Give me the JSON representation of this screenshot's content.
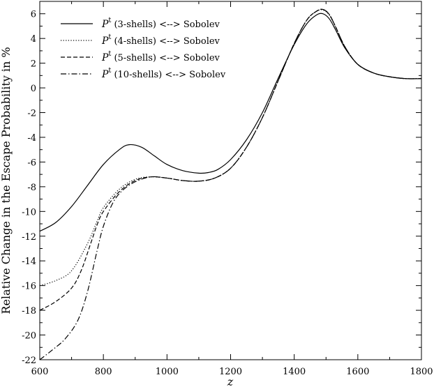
{
  "chart_data": {
    "type": "line",
    "title": "",
    "xlabel": "z",
    "ylabel": "Relative Change in the Escape Probability in %",
    "xlim": [
      600,
      1800
    ],
    "ylim": [
      -22,
      7
    ],
    "xticks": [
      600,
      800,
      1000,
      1200,
      1400,
      1600,
      1800
    ],
    "yticks": [
      -22,
      -20,
      -18,
      -16,
      -14,
      -12,
      -10,
      -8,
      -6,
      -4,
      -2,
      0,
      2,
      4,
      6
    ],
    "grid": false,
    "legend_position": "top-left",
    "series": [
      {
        "name": "Pt (3-shells) <--> Sobolev",
        "label_symbol": "P",
        "label_superscript": "t",
        "label_text": "(3-shells) <--> Sobolev",
        "dash": "solid",
        "x": [
          600,
          650,
          700,
          750,
          800,
          850,
          880,
          920,
          960,
          1000,
          1050,
          1100,
          1130,
          1160,
          1200,
          1250,
          1300,
          1350,
          1400,
          1440,
          1470,
          1490,
          1510,
          1530,
          1560,
          1600,
          1650,
          1700,
          1750,
          1800
        ],
        "y": [
          -11.6,
          -10.9,
          -9.6,
          -7.9,
          -6.2,
          -5.0,
          -4.6,
          -4.8,
          -5.5,
          -6.2,
          -6.7,
          -6.9,
          -6.85,
          -6.6,
          -5.8,
          -4.2,
          -2.0,
          0.8,
          3.5,
          5.2,
          5.9,
          6.0,
          5.6,
          4.7,
          3.2,
          1.9,
          1.2,
          0.9,
          0.75,
          0.75
        ]
      },
      {
        "name": "Pt (4-shells) <--> Sobolev",
        "label_symbol": "P",
        "label_superscript": "t",
        "label_text": "(4-shells) <--> Sobolev",
        "dash": "dotted",
        "x": [
          600,
          650,
          700,
          750,
          780,
          800,
          850,
          900,
          950,
          1000,
          1050,
          1100,
          1150,
          1200,
          1250,
          1300,
          1350,
          1400,
          1440,
          1470,
          1490,
          1510,
          1530,
          1560,
          1600,
          1650,
          1700,
          1750,
          1800
        ],
        "y": [
          -16.0,
          -15.6,
          -14.8,
          -12.6,
          -10.8,
          -9.7,
          -8.2,
          -7.4,
          -7.2,
          -7.3,
          -7.5,
          -7.55,
          -7.3,
          -6.5,
          -4.8,
          -2.4,
          0.6,
          3.6,
          5.5,
          6.2,
          6.3,
          5.9,
          4.9,
          3.3,
          1.9,
          1.2,
          0.9,
          0.75,
          0.75
        ]
      },
      {
        "name": "Pt (5-shells) <--> Sobolev",
        "label_symbol": "P",
        "label_superscript": "t",
        "label_text": "(5-shells) <--> Sobolev",
        "dash": "dashed",
        "x": [
          600,
          650,
          700,
          730,
          760,
          780,
          800,
          850,
          900,
          950,
          1000,
          1050,
          1100,
          1150,
          1200,
          1250,
          1300,
          1350,
          1400,
          1440,
          1470,
          1490,
          1510,
          1530,
          1560,
          1600,
          1650,
          1700,
          1750,
          1800
        ],
        "y": [
          -18.0,
          -17.3,
          -16.2,
          -14.8,
          -12.6,
          -11.1,
          -10.0,
          -8.4,
          -7.5,
          -7.2,
          -7.3,
          -7.5,
          -7.55,
          -7.3,
          -6.5,
          -4.8,
          -2.4,
          0.6,
          3.6,
          5.5,
          6.2,
          6.35,
          5.95,
          4.95,
          3.3,
          1.9,
          1.2,
          0.9,
          0.75,
          0.75
        ]
      },
      {
        "name": "Pt (10-shells) <--> Sobolev",
        "label_symbol": "P",
        "label_superscript": "t",
        "label_text": "(10-shells) <--> Sobolev",
        "dash": "dashdot",
        "x": [
          600,
          640,
          680,
          720,
          750,
          780,
          800,
          830,
          860,
          900,
          950,
          1000,
          1050,
          1100,
          1150,
          1200,
          1250,
          1300,
          1350,
          1400,
          1440,
          1470,
          1490,
          1510,
          1530,
          1560,
          1600,
          1650,
          1700,
          1750,
          1800
        ],
        "y": [
          -22.0,
          -21.2,
          -20.3,
          -18.8,
          -16.5,
          -13.2,
          -11.2,
          -9.3,
          -8.3,
          -7.6,
          -7.2,
          -7.3,
          -7.5,
          -7.55,
          -7.3,
          -6.5,
          -4.8,
          -2.4,
          0.6,
          3.6,
          5.5,
          6.2,
          6.35,
          5.95,
          4.95,
          3.3,
          1.9,
          1.2,
          0.9,
          0.75,
          0.75
        ]
      }
    ]
  }
}
